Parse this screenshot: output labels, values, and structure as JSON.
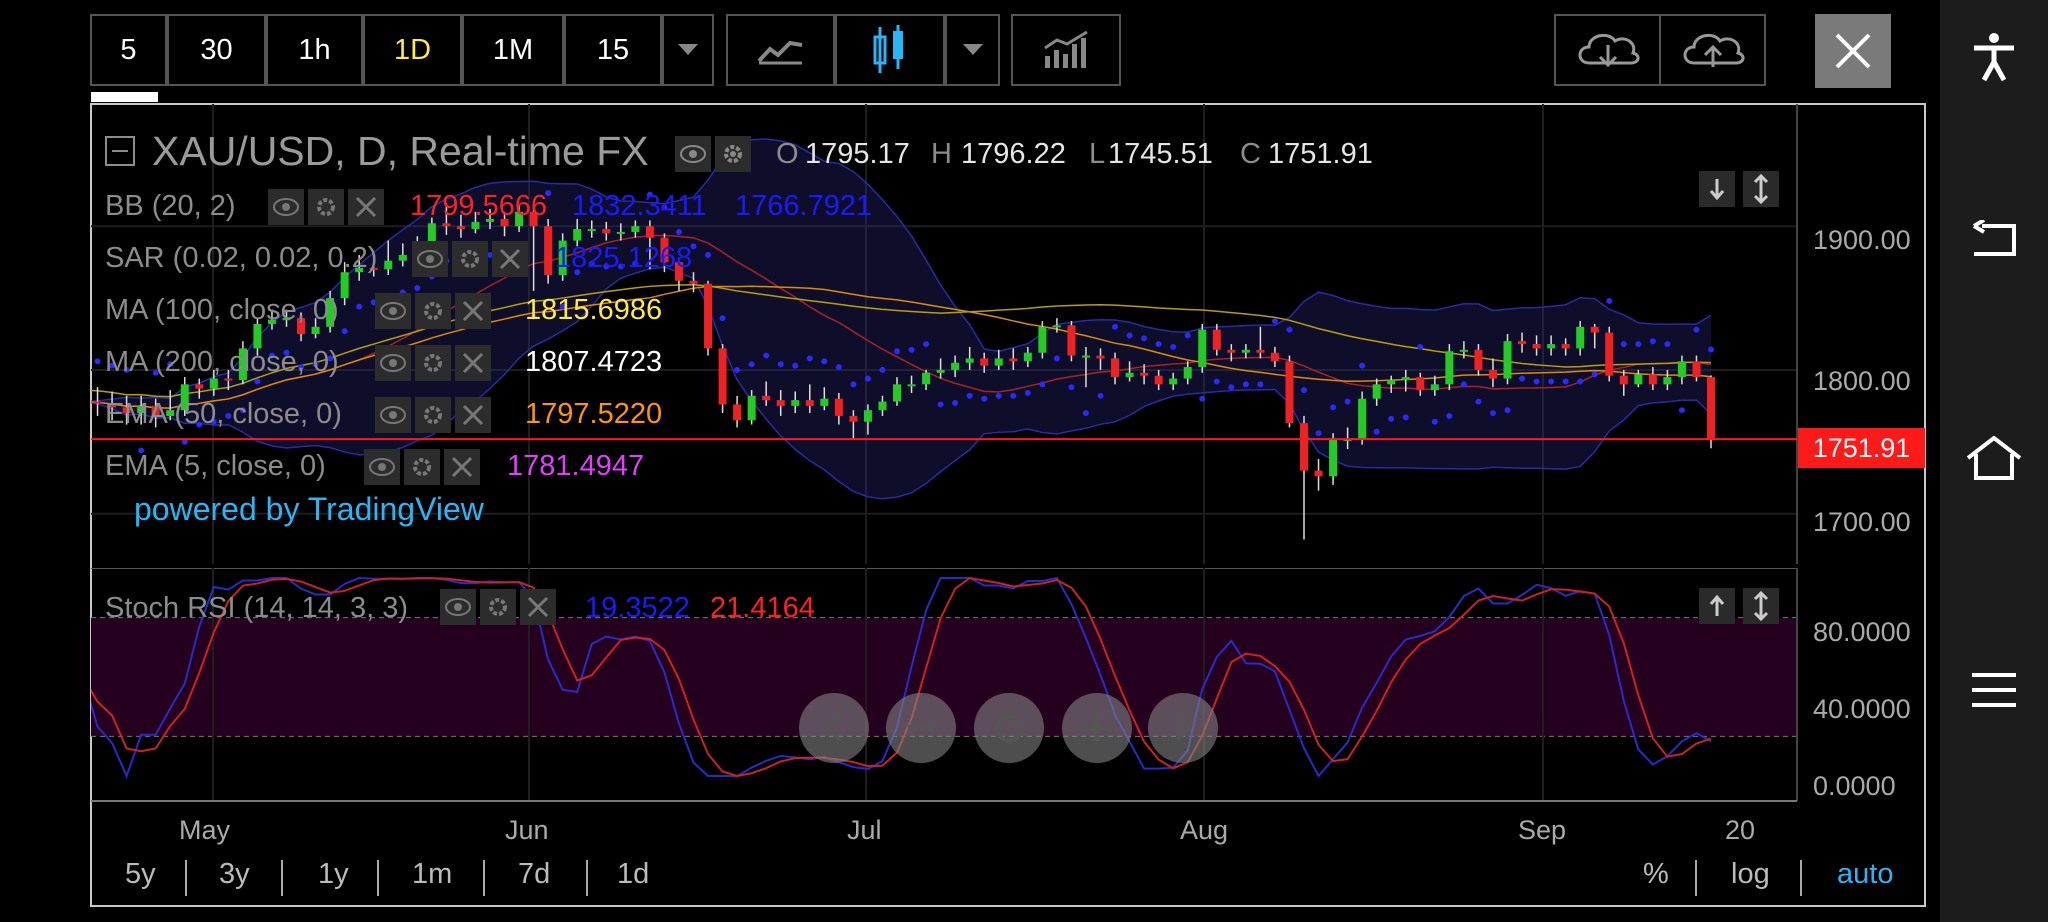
{
  "toolbar": {
    "intervals": [
      "5",
      "30",
      "1h",
      "1D",
      "1M",
      "15"
    ],
    "active_interval": "1D"
  },
  "chart": {
    "symbol_title": "XAU/USD, D, Real-time FX",
    "ohlc": {
      "o_label": "O",
      "o": "1795.17",
      "h_label": "H",
      "h": "1796.22",
      "l_label": "L",
      "l": "1745.51",
      "c_label": "C",
      "c": "1751.91"
    },
    "indicators": [
      {
        "name": "BB (20, 2)",
        "values": [
          {
            "v": "1799.5666",
            "color": "#ff2020"
          },
          {
            "v": "1832.3411",
            "color": "#1a1aff"
          },
          {
            "v": "1766.7921",
            "color": "#1a1aff"
          }
        ]
      },
      {
        "name": "SAR (0.02, 0.02, 0.2)",
        "values": [
          {
            "v": "1825.1268",
            "color": "#1a1aff"
          }
        ]
      },
      {
        "name": "MA (100, close, 0)",
        "values": [
          {
            "v": "1815.6986",
            "color": "#ffeb3b"
          }
        ]
      },
      {
        "name": "MA (200, close, 0)",
        "values": [
          {
            "v": "1807.4723",
            "color": "#ffffff"
          }
        ]
      },
      {
        "name": "EMA (50, close, 0)",
        "values": [
          {
            "v": "1797.5220",
            "color": "#ff9800"
          }
        ]
      },
      {
        "name": "EMA (5, close, 0)",
        "values": [
          {
            "v": "1781.4947",
            "color": "#e040fb"
          }
        ]
      }
    ],
    "watermark": "powered by TradingView",
    "last_price": "1751.91",
    "price_axis": [
      "1900.00",
      "1800.00",
      "1700.00"
    ]
  },
  "oscillator": {
    "name": "Stoch RSI (14, 14, 3, 3)",
    "k": "19.3522",
    "d": "21.4164",
    "axis": [
      "80.0000",
      "40.0000",
      "0.0000"
    ]
  },
  "time_axis": [
    "May",
    "Jun",
    "Jul",
    "Aug",
    "Sep",
    "20"
  ],
  "ranges": [
    "5y",
    "3y",
    "1y",
    "1m",
    "7d",
    "1d"
  ],
  "scale_options": {
    "percent": "%",
    "log": "log",
    "auto": "auto"
  },
  "colors": {
    "up": "#22cc22",
    "down": "#ee2222",
    "price_tag": "#ff1a1a",
    "auto": "#29b6f6",
    "active_interval": "#ffeb3b"
  },
  "chart_data": {
    "type": "candlestick",
    "symbol": "XAU/USD",
    "ylim": [
      1665,
      1985
    ],
    "x_ticks": [
      "May",
      "Jun",
      "Jul",
      "Aug",
      "Sep",
      "20"
    ],
    "y_ticks": [
      1700,
      1800,
      1900
    ],
    "candles": [
      [
        1780,
        1778,
        1790,
        1770
      ],
      [
        1778,
        1777,
        1788,
        1768
      ],
      [
        1777,
        1774,
        1785,
        1765
      ],
      [
        1774,
        1770,
        1782,
        1762
      ],
      [
        1770,
        1775,
        1782,
        1762
      ],
      [
        1775,
        1768,
        1780,
        1760
      ],
      [
        1768,
        1772,
        1786,
        1765
      ],
      [
        1772,
        1790,
        1795,
        1768
      ],
      [
        1790,
        1787,
        1794,
        1780
      ],
      [
        1787,
        1794,
        1800,
        1782
      ],
      [
        1794,
        1793,
        1800,
        1786
      ],
      [
        1793,
        1815,
        1820,
        1790
      ],
      [
        1815,
        1832,
        1836,
        1810
      ],
      [
        1832,
        1835,
        1842,
        1828
      ],
      [
        1835,
        1836,
        1842,
        1830
      ],
      [
        1836,
        1825,
        1840,
        1820
      ],
      [
        1825,
        1830,
        1836,
        1822
      ],
      [
        1830,
        1850,
        1855,
        1826
      ],
      [
        1850,
        1868,
        1875,
        1845
      ],
      [
        1868,
        1871,
        1880,
        1862
      ],
      [
        1871,
        1870,
        1880,
        1865
      ],
      [
        1870,
        1876,
        1890,
        1866
      ],
      [
        1876,
        1880,
        1888,
        1872
      ],
      [
        1880,
        1888,
        1893,
        1875
      ],
      [
        1888,
        1902,
        1906,
        1883
      ],
      [
        1902,
        1900,
        1916,
        1894
      ],
      [
        1900,
        1898,
        1908,
        1892
      ],
      [
        1898,
        1903,
        1910,
        1895
      ],
      [
        1903,
        1905,
        1912,
        1898
      ],
      [
        1905,
        1900,
        1910,
        1893
      ],
      [
        1900,
        1910,
        1915,
        1896
      ],
      [
        1910,
        1900,
        1914,
        1855
      ],
      [
        1900,
        1866,
        1905,
        1860
      ],
      [
        1866,
        1890,
        1895,
        1862
      ],
      [
        1890,
        1898,
        1905,
        1886
      ],
      [
        1898,
        1898,
        1904,
        1892
      ],
      [
        1898,
        1895,
        1903,
        1890
      ],
      [
        1895,
        1896,
        1902,
        1890
      ],
      [
        1896,
        1900,
        1904,
        1892
      ],
      [
        1900,
        1892,
        1904,
        1870
      ],
      [
        1892,
        1875,
        1895,
        1868
      ],
      [
        1875,
        1862,
        1878,
        1855
      ],
      [
        1862,
        1860,
        1868,
        1854
      ],
      [
        1860,
        1815,
        1862,
        1810
      ],
      [
        1815,
        1776,
        1818,
        1770
      ],
      [
        1776,
        1765,
        1782,
        1760
      ],
      [
        1765,
        1782,
        1786,
        1762
      ],
      [
        1782,
        1779,
        1792,
        1775
      ],
      [
        1779,
        1775,
        1786,
        1768
      ],
      [
        1775,
        1779,
        1785,
        1770
      ],
      [
        1779,
        1775,
        1790,
        1770
      ],
      [
        1775,
        1780,
        1788,
        1772
      ],
      [
        1780,
        1768,
        1784,
        1762
      ],
      [
        1768,
        1764,
        1772,
        1752
      ],
      [
        1764,
        1772,
        1776,
        1755
      ],
      [
        1772,
        1778,
        1782,
        1768
      ],
      [
        1778,
        1790,
        1795,
        1775
      ],
      [
        1790,
        1790,
        1796,
        1784
      ],
      [
        1790,
        1798,
        1800,
        1786
      ],
      [
        1798,
        1800,
        1808,
        1794
      ],
      [
        1800,
        1805,
        1810,
        1795
      ],
      [
        1805,
        1808,
        1816,
        1800
      ],
      [
        1808,
        1803,
        1812,
        1798
      ],
      [
        1803,
        1808,
        1814,
        1800
      ],
      [
        1808,
        1806,
        1815,
        1800
      ],
      [
        1806,
        1812,
        1816,
        1802
      ],
      [
        1812,
        1830,
        1834,
        1808
      ],
      [
        1830,
        1831,
        1836,
        1826
      ],
      [
        1831,
        1810,
        1834,
        1806
      ],
      [
        1810,
        1810,
        1816,
        1788
      ],
      [
        1810,
        1808,
        1815,
        1800
      ],
      [
        1808,
        1795,
        1812,
        1790
      ],
      [
        1795,
        1798,
        1806,
        1792
      ],
      [
        1798,
        1796,
        1804,
        1790
      ],
      [
        1796,
        1790,
        1800,
        1786
      ],
      [
        1790,
        1794,
        1798,
        1786
      ],
      [
        1794,
        1802,
        1806,
        1790
      ],
      [
        1802,
        1828,
        1832,
        1798
      ],
      [
        1828,
        1814,
        1832,
        1810
      ],
      [
        1814,
        1812,
        1818,
        1806
      ],
      [
        1812,
        1814,
        1818,
        1808
      ],
      [
        1814,
        1812,
        1830,
        1808
      ],
      [
        1812,
        1806,
        1816,
        1802
      ],
      [
        1806,
        1763,
        1810,
        1760
      ],
      [
        1763,
        1730,
        1768,
        1682
      ],
      [
        1730,
        1726,
        1738,
        1716
      ],
      [
        1726,
        1752,
        1756,
        1720
      ],
      [
        1752,
        1752,
        1760,
        1745
      ],
      [
        1752,
        1780,
        1785,
        1748
      ],
      [
        1780,
        1790,
        1794,
        1775
      ],
      [
        1790,
        1793,
        1796,
        1784
      ],
      [
        1793,
        1795,
        1800,
        1785
      ],
      [
        1795,
        1786,
        1798,
        1782
      ],
      [
        1786,
        1790,
        1796,
        1782
      ],
      [
        1790,
        1813,
        1818,
        1786
      ],
      [
        1813,
        1814,
        1820,
        1808
      ],
      [
        1814,
        1800,
        1818,
        1796
      ],
      [
        1800,
        1794,
        1808,
        1788
      ],
      [
        1794,
        1820,
        1825,
        1790
      ],
      [
        1820,
        1818,
        1826,
        1812
      ],
      [
        1818,
        1815,
        1824,
        1810
      ],
      [
        1815,
        1818,
        1824,
        1810
      ],
      [
        1818,
        1815,
        1822,
        1810
      ],
      [
        1815,
        1830,
        1834,
        1810
      ],
      [
        1830,
        1826,
        1832,
        1815
      ],
      [
        1826,
        1796,
        1830,
        1792
      ],
      [
        1796,
        1790,
        1800,
        1782
      ],
      [
        1790,
        1797,
        1800,
        1788
      ],
      [
        1797,
        1790,
        1802,
        1786
      ],
      [
        1790,
        1795,
        1800,
        1786
      ],
      [
        1795,
        1806,
        1810,
        1790
      ],
      [
        1806,
        1795,
        1810,
        1792
      ],
      [
        1795,
        1751.91,
        1796.22,
        1745.51
      ]
    ]
  }
}
